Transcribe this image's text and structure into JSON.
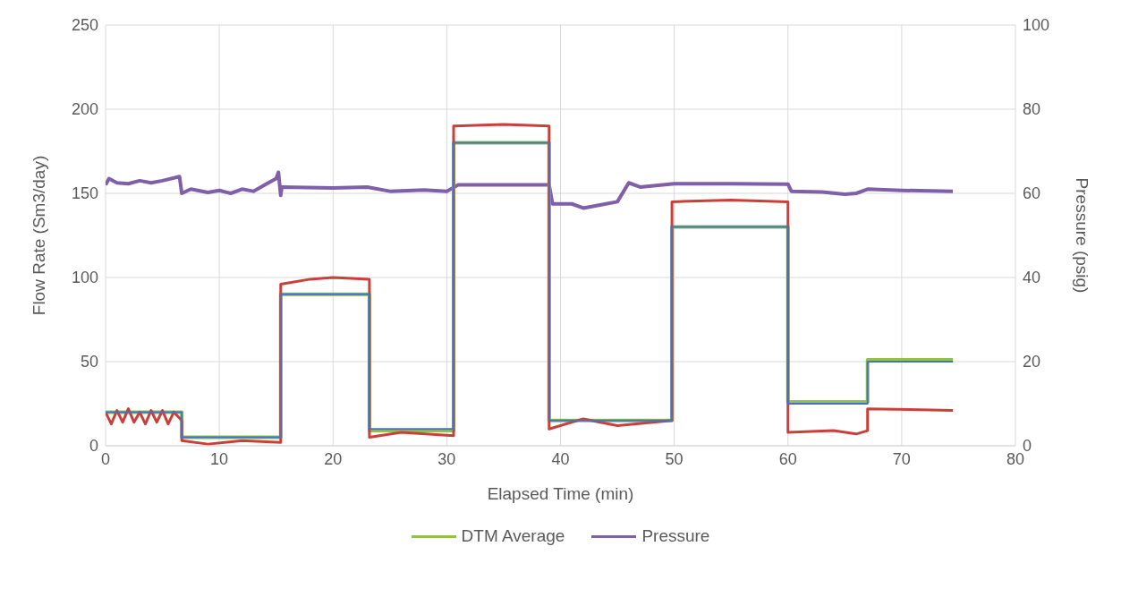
{
  "chart_data": {
    "type": "line",
    "xlabel": "Elapsed Time (min)",
    "ylabel": "Flow Rate (Sm3/day)",
    "y2label": "Pressure (psig)",
    "xlim": [
      0,
      80
    ],
    "xticks": [
      0,
      10,
      20,
      30,
      40,
      50,
      60,
      70,
      80
    ],
    "ylim": [
      0,
      250
    ],
    "yticks": [
      0,
      50,
      100,
      150,
      200,
      250
    ],
    "y2lim": [
      0,
      100
    ],
    "y2ticks": [
      0,
      20,
      40,
      60,
      80,
      100
    ],
    "grid": true,
    "legend": "bottom",
    "marker": "none",
    "line_style": "solid",
    "series": [
      {
        "color": "#4472c4",
        "x": [
          0,
          6.7,
          6.7,
          15.4,
          15.4,
          23.2,
          23.2,
          30.6,
          30.6,
          39,
          39,
          49.8,
          49.8,
          60,
          60,
          67,
          67,
          74.5
        ],
        "values": [
          20,
          20,
          5,
          5,
          90,
          90,
          10,
          10,
          180,
          180,
          15,
          15,
          130,
          130,
          25,
          25,
          50,
          50
        ]
      },
      {
        "color": "#c9403b",
        "x": [
          0,
          0.5,
          1,
          1.5,
          2,
          2.5,
          3,
          3.5,
          4,
          4.5,
          5,
          5.5,
          6,
          6.7,
          6.7,
          9,
          12,
          15.4,
          15.4,
          18,
          20,
          23.2,
          23.2,
          26,
          30.6,
          30.6,
          35,
          39,
          39,
          42,
          45,
          49.8,
          49.8,
          55,
          60,
          60,
          64,
          66,
          67,
          67,
          74.5
        ],
        "values": [
          20,
          13,
          21,
          14,
          22,
          14,
          20,
          13,
          21,
          14,
          21,
          13,
          20,
          15,
          3,
          1,
          3,
          2,
          96,
          99,
          100,
          99,
          5,
          8,
          6,
          190,
          191,
          190,
          10,
          16,
          12,
          15,
          145,
          146,
          145,
          8,
          9,
          7,
          9,
          22,
          21
        ]
      },
      {
        "name": "DTM Average",
        "color": "#92c050",
        "x": [
          0,
          6.7,
          6.7,
          15.4,
          15.4,
          23.2,
          23.2,
          30.6,
          30.6,
          39,
          39,
          49.8,
          49.8,
          60,
          60,
          67,
          67,
          74.5
        ],
        "values": [
          20,
          20,
          5,
          5,
          90,
          90,
          9,
          9,
          180,
          180,
          15,
          15,
          130,
          130,
          26,
          26,
          51,
          51
        ]
      },
      {
        "name": "Pressure",
        "color": "#7f5fa8",
        "axis": "y2",
        "x": [
          0,
          0.3,
          1,
          2,
          3,
          4,
          5,
          6.5,
          6.7,
          7.5,
          9,
          10,
          11,
          12,
          13,
          14,
          15,
          15.2,
          15.4,
          15.5,
          20,
          23,
          25,
          28,
          30,
          31,
          35,
          39,
          39.3,
          41,
          42,
          44,
          45,
          46,
          47,
          50,
          55,
          60,
          60.3,
          63,
          65,
          66,
          67,
          70,
          74.5
        ],
        "values": [
          62,
          63.5,
          62.5,
          62.3,
          63,
          62.5,
          63,
          64,
          60,
          61,
          60.2,
          60.7,
          60,
          61,
          60.5,
          62,
          63.5,
          65,
          59.5,
          61.5,
          61.3,
          61.5,
          60.5,
          60.8,
          60.5,
          62,
          62,
          62,
          57.5,
          57.5,
          56.5,
          57.5,
          58,
          62.5,
          61.5,
          62.3,
          62.3,
          62.2,
          60.5,
          60.3,
          59.8,
          60,
          61,
          60.7,
          60.5
        ]
      }
    ]
  }
}
